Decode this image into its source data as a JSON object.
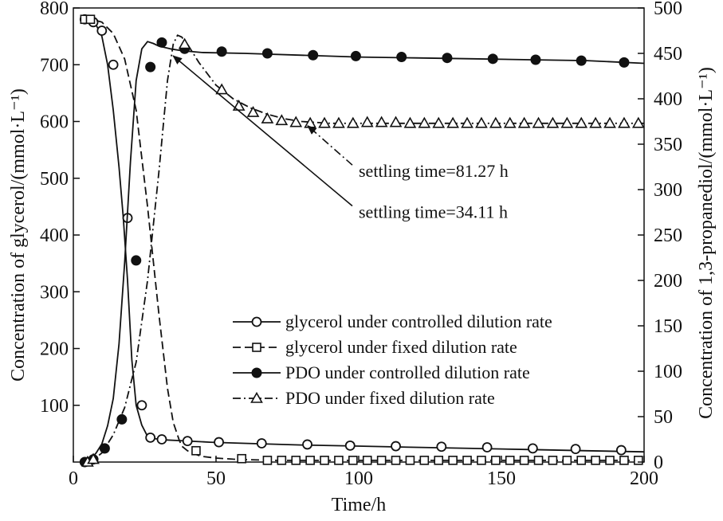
{
  "chart_data": {
    "type": "line",
    "xlabel": "Time/h",
    "ylabel_left": "Concentration of glycerol/(mmol·L⁻¹)",
    "ylabel_right": "Concentration of 1,3-propanediol/(mmol·L⁻¹)",
    "xlim": [
      0,
      200
    ],
    "ylim_left": [
      0,
      800
    ],
    "ylim_right": [
      0,
      500
    ],
    "x_ticks": [
      0,
      50,
      100,
      150,
      200
    ],
    "y_left_ticks": [
      100,
      200,
      300,
      400,
      500,
      600,
      700,
      800
    ],
    "y_right_ticks": [
      0,
      50,
      100,
      150,
      200,
      250,
      300,
      350,
      400,
      450,
      500
    ],
    "grid": false,
    "legend_position": "center-right",
    "series": [
      {
        "name": "glycerol under controlled dilution rate",
        "axis": "left",
        "line_style": "solid",
        "marker": "open-circle",
        "smooth_x": [
          4,
          6,
          8,
          10,
          12,
          14,
          16,
          17.5,
          19,
          20.5,
          22,
          24,
          26,
          28,
          30,
          32,
          36,
          40,
          48,
          60,
          80,
          100,
          120,
          140,
          160,
          180,
          200
        ],
        "smooth_y": [
          780,
          778,
          770,
          750,
          700,
          620,
          520,
          430,
          320,
          180,
          100,
          65,
          45,
          42,
          40,
          39,
          38,
          37,
          35,
          33,
          30,
          28,
          26,
          24,
          22,
          20,
          18
        ],
        "marker_x": [
          4,
          7,
          10,
          14,
          19,
          24,
          27,
          31,
          40,
          51,
          66,
          82,
          97,
          113,
          129,
          145,
          161,
          176,
          192
        ],
        "marker_y": [
          780,
          775,
          760,
          700,
          430,
          100,
          43,
          40,
          37,
          35,
          33,
          31,
          29,
          28,
          27,
          26,
          24,
          23,
          21
        ]
      },
      {
        "name": "glycerol under fixed dilution rate",
        "axis": "left",
        "line_style": "dashed",
        "marker": "open-square",
        "smooth_x": [
          4,
          6,
          8,
          10,
          14,
          18,
          22,
          26,
          30,
          33,
          35,
          37,
          38,
          40,
          42,
          45,
          50,
          56,
          62,
          70,
          80,
          100,
          150,
          200
        ],
        "smooth_y": [
          780,
          780,
          778,
          775,
          755,
          710,
          620,
          450,
          260,
          130,
          70,
          40,
          28,
          20,
          15,
          10,
          7,
          5,
          4,
          3,
          3,
          3,
          3,
          3
        ],
        "marker_x": [
          4,
          6,
          43,
          59,
          68,
          73,
          78,
          83,
          88,
          93,
          98,
          103,
          108,
          113,
          118,
          123,
          128,
          133,
          138,
          143,
          148,
          153,
          158,
          163,
          168,
          173,
          178,
          183,
          188,
          193,
          198
        ],
        "marker_y": [
          780,
          780,
          20,
          6,
          3,
          3,
          3,
          3,
          3,
          3,
          3,
          3,
          3,
          3,
          3,
          3,
          3,
          3,
          3,
          3,
          3,
          3,
          3,
          3,
          3,
          3,
          3,
          3,
          3,
          3,
          3
        ]
      },
      {
        "name": "PDO under controlled dilution rate",
        "axis": "right",
        "line_style": "solid",
        "marker": "filled-circle",
        "smooth_x": [
          4,
          6,
          8,
          10,
          12,
          14,
          16,
          18,
          20,
          22,
          24,
          26,
          28,
          30,
          34,
          38,
          45,
          60,
          80,
          100,
          120,
          140,
          160,
          180,
          200
        ],
        "smooth_y": [
          0,
          3,
          10,
          20,
          40,
          70,
          130,
          220,
          330,
          420,
          455,
          463,
          461,
          458,
          455,
          453,
          451,
          450,
          448,
          446,
          445,
          444,
          443,
          442,
          439
        ],
        "marker_x": [
          4,
          7,
          11,
          17,
          22,
          27,
          31,
          39,
          52,
          68,
          84,
          99,
          115,
          131,
          147,
          162,
          178,
          193
        ],
        "marker_y": [
          0,
          3,
          15,
          47,
          222,
          435,
          462,
          455,
          452,
          450,
          448,
          447,
          446,
          445,
          444,
          443,
          442,
          440
        ]
      },
      {
        "name": "PDO under fixed dilution rate",
        "axis": "right",
        "line_style": "dash-dot",
        "marker": "open-triangle",
        "smooth_x": [
          4,
          6,
          8,
          10,
          14,
          18,
          22,
          26,
          30,
          33,
          35,
          36.5,
          38,
          40,
          44,
          50,
          56,
          62,
          68,
          74,
          80,
          90,
          100,
          150,
          200
        ],
        "smooth_y": [
          0,
          2,
          5,
          10,
          30,
          60,
          110,
          200,
          320,
          420,
          460,
          470,
          468,
          460,
          440,
          415,
          400,
          390,
          383,
          378,
          375,
          373,
          373,
          373,
          373
        ],
        "marker_x": [
          5,
          7,
          39,
          52,
          58,
          63,
          68,
          73,
          78,
          83,
          88,
          93,
          98,
          103,
          108,
          113,
          118,
          123,
          128,
          133,
          138,
          143,
          148,
          153,
          158,
          163,
          168,
          173,
          178,
          183,
          188,
          193,
          198
        ],
        "marker_y": [
          0,
          3,
          460,
          410,
          392,
          385,
          378,
          376,
          374,
          373,
          373,
          373,
          373,
          374,
          374,
          374,
          373,
          373,
          373,
          373,
          373,
          373,
          373,
          373,
          373,
          373,
          373,
          373,
          373,
          373,
          373,
          373,
          373
        ]
      }
    ],
    "annotations": [
      {
        "text": "settling time=81.27 h",
        "point_x": 81.27,
        "point_y": 373,
        "point_axis": "right",
        "text_x": 100,
        "text_y": 320,
        "text_axis": "right",
        "line_style": "dash-dot"
      },
      {
        "text": "settling time=34.11 h",
        "point_x": 34.11,
        "point_y": 450,
        "point_axis": "right",
        "text_x": 100,
        "text_y": 275,
        "text_axis": "right",
        "line_style": "solid"
      }
    ]
  }
}
